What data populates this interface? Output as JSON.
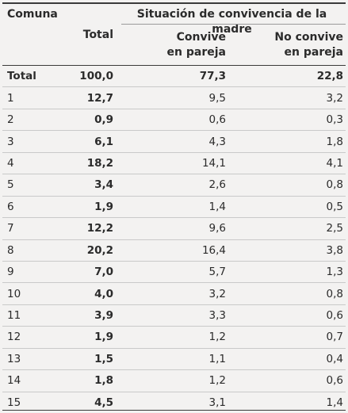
{
  "header": {
    "comuna": "Comuna",
    "total": "Total",
    "group_title": "Situación de convivencia de la madre",
    "convive_line1": "Convive",
    "convive_line2": "en pareja",
    "no_convive_line1": "No convive",
    "no_convive_line2": "en pareja"
  },
  "rows": [
    {
      "comuna": "Total",
      "total": "100,0",
      "convive": "77,3",
      "no_convive": "22,8"
    },
    {
      "comuna": "1",
      "total": "12,7",
      "convive": "9,5",
      "no_convive": "3,2"
    },
    {
      "comuna": "2",
      "total": "0,9",
      "convive": "0,6",
      "no_convive": "0,3"
    },
    {
      "comuna": "3",
      "total": "6,1",
      "convive": "4,3",
      "no_convive": "1,8"
    },
    {
      "comuna": "4",
      "total": "18,2",
      "convive": "14,1",
      "no_convive": "4,1"
    },
    {
      "comuna": "5",
      "total": "3,4",
      "convive": "2,6",
      "no_convive": "0,8"
    },
    {
      "comuna": "6",
      "total": "1,9",
      "convive": "1,4",
      "no_convive": "0,5"
    },
    {
      "comuna": "7",
      "total": "12,2",
      "convive": "9,6",
      "no_convive": "2,5"
    },
    {
      "comuna": "8",
      "total": "20,2",
      "convive": "16,4",
      "no_convive": "3,8"
    },
    {
      "comuna": "9",
      "total": "7,0",
      "convive": "5,7",
      "no_convive": "1,3"
    },
    {
      "comuna": "10",
      "total": "4,0",
      "convive": "3,2",
      "no_convive": "0,8"
    },
    {
      "comuna": "11",
      "total": "3,9",
      "convive": "3,3",
      "no_convive": "0,6"
    },
    {
      "comuna": "12",
      "total": "1,9",
      "convive": "1,2",
      "no_convive": "0,7"
    },
    {
      "comuna": "13",
      "total": "1,5",
      "convive": "1,1",
      "no_convive": "0,4"
    },
    {
      "comuna": "14",
      "total": "1,8",
      "convive": "1,2",
      "no_convive": "0,6"
    },
    {
      "comuna": "15",
      "total": "4,5",
      "convive": "3,1",
      "no_convive": "1,4"
    }
  ]
}
